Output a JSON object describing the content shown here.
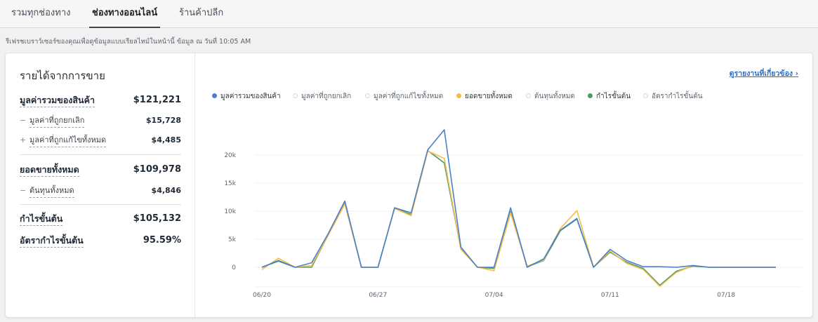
{
  "tabs": [
    {
      "label": "รวมทุกช่องทาง",
      "active": false
    },
    {
      "label": "ช่องทางออนไลน์",
      "active": true
    },
    {
      "label": "ร้านค้าปลีก",
      "active": false
    }
  ],
  "refresh_note": "รีเฟรชเบราว์เซอร์ของคุณเพื่อดูข้อมูลแบบเรียลไทม์ในหน้านี้ ข้อมูล ณ วันที่ 10:05 AM",
  "summary": {
    "title": "รายได้จากการขาย",
    "gross": {
      "label": "มูลค่ารวมของสินค้า",
      "value": "$121,221"
    },
    "cancelled": {
      "sign": "−",
      "label": "มูลค่าที่ถูกยกเลิก",
      "value": "$15,728"
    },
    "edited": {
      "sign": "+",
      "label": "มูลค่าที่ถูกแก้ไขทั้งหมด",
      "value": "$4,485"
    },
    "total_sales": {
      "label": "ยอดขายทั้งหมด",
      "value": "$109,978"
    },
    "cost": {
      "sign": "−",
      "label": "ต้นทุนทั้งหมด",
      "value": "$4,846"
    },
    "gross_profit": {
      "label": "กำไรขั้นต้น",
      "value": "$105,132"
    },
    "margin": {
      "label": "อัตรากำไรขั้นต้น",
      "value": "95.59%"
    }
  },
  "report_link": "ดูรายงานที่เกี่ยวข้อง ›",
  "legend": [
    {
      "label": "มูลค่ารวมของสินค้า",
      "color": "#4a7fc9",
      "active": true
    },
    {
      "label": "มูลค่าที่ถูกยกเลิก",
      "color": "#d6d9dd",
      "active": false
    },
    {
      "label": "มูลค่าที่ถูกแก้ไขทั้งหมด",
      "color": "#d6d9dd",
      "active": false
    },
    {
      "label": "ยอดขายทั้งหมด",
      "color": "#f2bc48",
      "active": true
    },
    {
      "label": "ต้นทุนทั้งหมด",
      "color": "#d6d9dd",
      "active": false
    },
    {
      "label": "กำไรขั้นต้น",
      "color": "#4d9a6b",
      "active": true
    },
    {
      "label": "อัตรากำไรขั้นต้น",
      "color": "#d6d9dd",
      "active": false
    }
  ],
  "chart_data": {
    "type": "line",
    "x_ticks": [
      "06/20",
      "06/27",
      "07/04",
      "07/11",
      "07/18"
    ],
    "y_ticks": [
      "0",
      "5k",
      "10k",
      "15k",
      "20k"
    ],
    "ylim": [
      -3500,
      25000
    ],
    "x": [
      "06/20",
      "06/21",
      "06/22",
      "06/23",
      "06/24",
      "06/25",
      "06/26",
      "06/27",
      "06/28",
      "06/29",
      "06/30",
      "07/01",
      "07/02",
      "07/03",
      "07/04",
      "07/05",
      "07/06",
      "07/07",
      "07/08",
      "07/09",
      "07/10",
      "07/11",
      "07/12",
      "07/13",
      "07/14",
      "07/15",
      "07/16",
      "07/17",
      "07/18",
      "07/19",
      "07/20",
      "07/21"
    ],
    "series": [
      {
        "name": "มูลค่ารวมของสินค้า",
        "color": "#4a7fc9",
        "values": [
          0,
          1200,
          0,
          800,
          6000,
          11800,
          0,
          0,
          10600,
          9700,
          20900,
          24500,
          3600,
          0,
          0,
          10600,
          0,
          1500,
          6600,
          8700,
          0,
          3200,
          1200,
          100,
          100,
          0,
          300,
          0,
          0,
          0,
          0,
          0
        ]
      },
      {
        "name": "ยอดขายทั้งหมด",
        "color": "#f2bc48",
        "values": [
          -400,
          1600,
          0,
          300,
          5700,
          11300,
          0,
          0,
          10500,
          9200,
          20700,
          19400,
          3200,
          0,
          -600,
          9700,
          200,
          1300,
          6900,
          10100,
          0,
          2900,
          700,
          -400,
          -3400,
          -900,
          300,
          0,
          0,
          0,
          0,
          0
        ]
      },
      {
        "name": "กำไรขั้นต้น",
        "color": "#4d9a6b",
        "values": [
          0,
          1100,
          0,
          0,
          5800,
          11400,
          0,
          0,
          10500,
          9400,
          20800,
          18600,
          3300,
          0,
          -200,
          9900,
          100,
          1200,
          6500,
          8600,
          0,
          2700,
          900,
          -200,
          -3200,
          -700,
          200,
          0,
          0,
          0,
          0,
          0
        ]
      }
    ]
  }
}
